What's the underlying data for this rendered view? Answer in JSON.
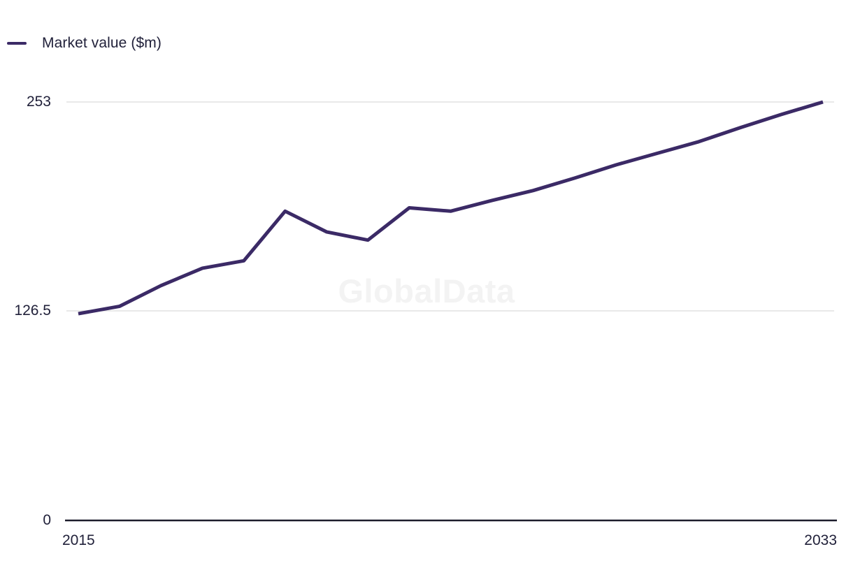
{
  "legend": {
    "items": [
      {
        "label": "Market value ($m)",
        "color": "#3b2a66"
      }
    ]
  },
  "chart_data": {
    "type": "line",
    "title": "",
    "xlabel": "",
    "ylabel": "",
    "x": [
      2015,
      2016,
      2017,
      2018,
      2019,
      2020,
      2021,
      2022,
      2023,
      2024,
      2025,
      2026,
      2027,
      2028,
      2029,
      2030,
      2031,
      2032,
      2033
    ],
    "series": [
      {
        "name": "Market value ($m)",
        "color": "#3b2a66",
        "values": [
          125,
          129.5,
          142,
          152.5,
          157,
          187,
          174.5,
          169.5,
          189,
          187,
          193.5,
          199.5,
          207,
          215,
          222,
          229,
          237.5,
          245.5,
          253
        ]
      }
    ],
    "ylim": [
      0,
      253
    ],
    "ytick_values": [
      253,
      126.5,
      0
    ],
    "ytick_labels": [
      "253",
      "126.5",
      "0"
    ],
    "xtick_labels": [
      "2015",
      "2033"
    ],
    "grid": "horizontal",
    "legend_position": "top-left",
    "watermark": "GlobalData",
    "colors": {
      "line": "#3b2a66",
      "axis": "#1d1d2c",
      "gridline": "#e2e2e2",
      "tick_text": "#21213a",
      "watermark_text": "#f3f3f3",
      "background": "#ffffff"
    }
  }
}
